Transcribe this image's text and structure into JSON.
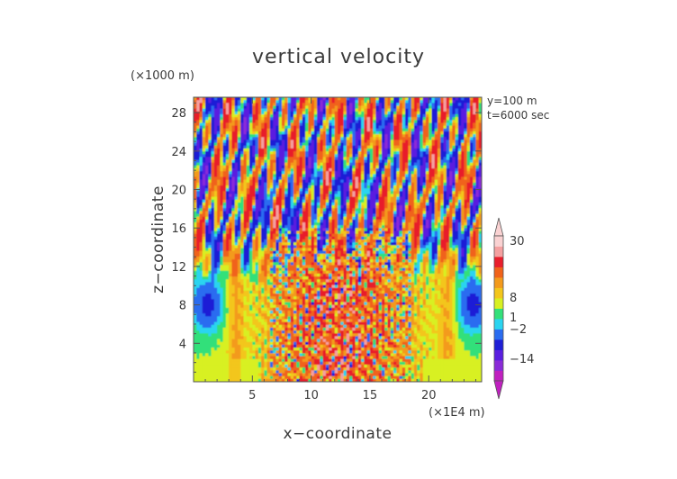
{
  "chart_data": {
    "type": "heatmap",
    "title": "vertical velocity",
    "xlabel": "x−coordinate",
    "ylabel": "z−coordinate",
    "x_unit": "(×1E4 m)",
    "y_unit": "(×1000 m)",
    "annotations": [
      "y=100  m",
      "t=6000 sec"
    ],
    "xlim": [
      0,
      24.5
    ],
    "ylim": [
      0,
      29.6
    ],
    "x_ticks": [
      "5",
      "10",
      "15",
      "20"
    ],
    "y_ticks": [
      "4",
      "8",
      "12",
      "16",
      "20",
      "24",
      "28"
    ],
    "colorbar": {
      "labels": [
        "30",
        "8",
        "1",
        "−2",
        "−14"
      ],
      "levels": [
        -30,
        -14,
        -8,
        -4,
        -2,
        -1,
        0,
        1,
        2,
        4,
        8,
        14,
        30
      ],
      "colors": [
        "#c020c0",
        "#8a2bd8",
        "#5a1fe0",
        "#1f1fd6",
        "#2a6cf0",
        "#2ad4f0",
        "#33e07a",
        "#d8f021",
        "#f3c61c",
        "#f39a1c",
        "#f0621a",
        "#e81e2c",
        "#f4a0a0",
        "#fad2d2"
      ],
      "extend": "both"
    },
    "grid": false
  }
}
